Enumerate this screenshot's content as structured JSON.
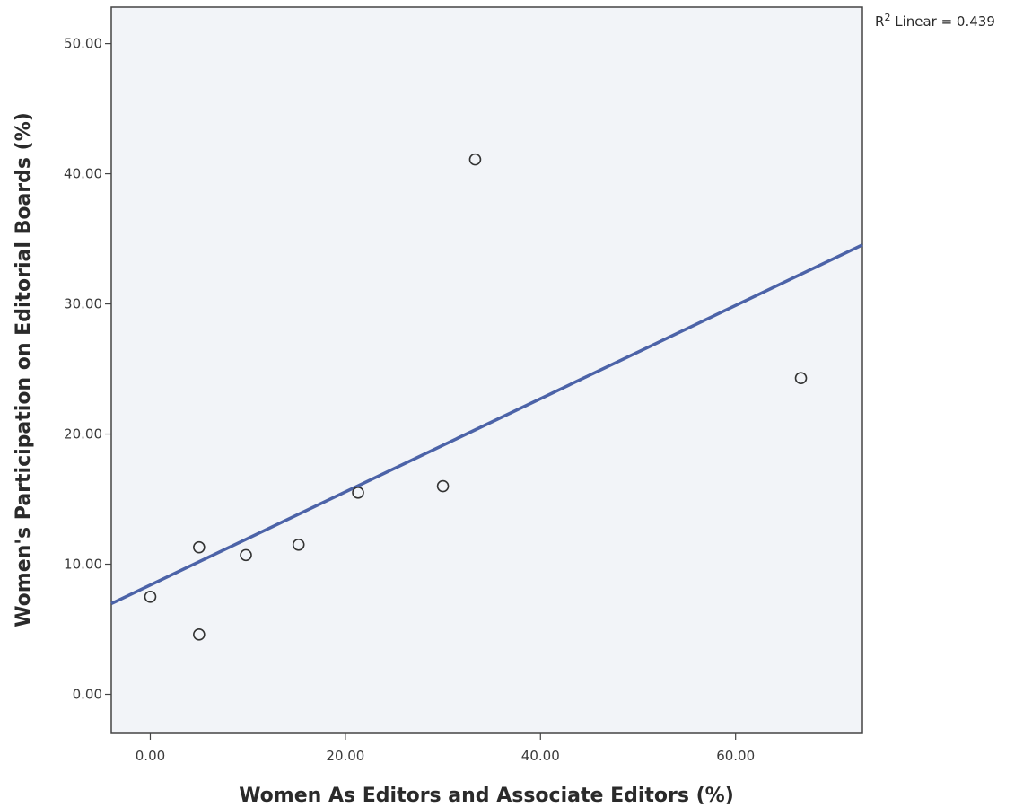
{
  "chart_data": {
    "type": "scatter",
    "xlabel": "Women As Editors and Associate Editors (%)",
    "ylabel": "Women's Participation on Editorial Boards (%)",
    "xlim": [
      -4,
      73
    ],
    "ylim": [
      -3,
      52.8
    ],
    "x_ticks": [
      "0.00",
      "20.00",
      "40.00",
      "60.00"
    ],
    "x_tick_values": [
      0,
      20,
      40,
      60
    ],
    "y_ticks": [
      "0.00",
      "10.00",
      "20.00",
      "30.00",
      "40.00",
      "50.00"
    ],
    "y_tick_values": [
      0,
      10,
      20,
      30,
      40,
      50
    ],
    "grid": false,
    "points": [
      {
        "x": 0,
        "y": 7.5
      },
      {
        "x": 5,
        "y": 11.3
      },
      {
        "x": 5,
        "y": 4.6
      },
      {
        "x": 9.8,
        "y": 10.7
      },
      {
        "x": 15.2,
        "y": 11.5
      },
      {
        "x": 21.3,
        "y": 15.5
      },
      {
        "x": 30,
        "y": 16
      },
      {
        "x": 33.3,
        "y": 41.1
      },
      {
        "x": 66.7,
        "y": 24.3
      }
    ],
    "fit_line": {
      "type": "linear",
      "intercept": 8.4,
      "slope": 0.358,
      "r2_prefix": "R",
      "r2_superscript": "2",
      "r2_text": " Linear = 0.439"
    },
    "colors": {
      "plot_background": "#f2f4f8",
      "fit_line": "#4c63a8",
      "point_stroke": "#333333",
      "axis": "#444444"
    }
  }
}
